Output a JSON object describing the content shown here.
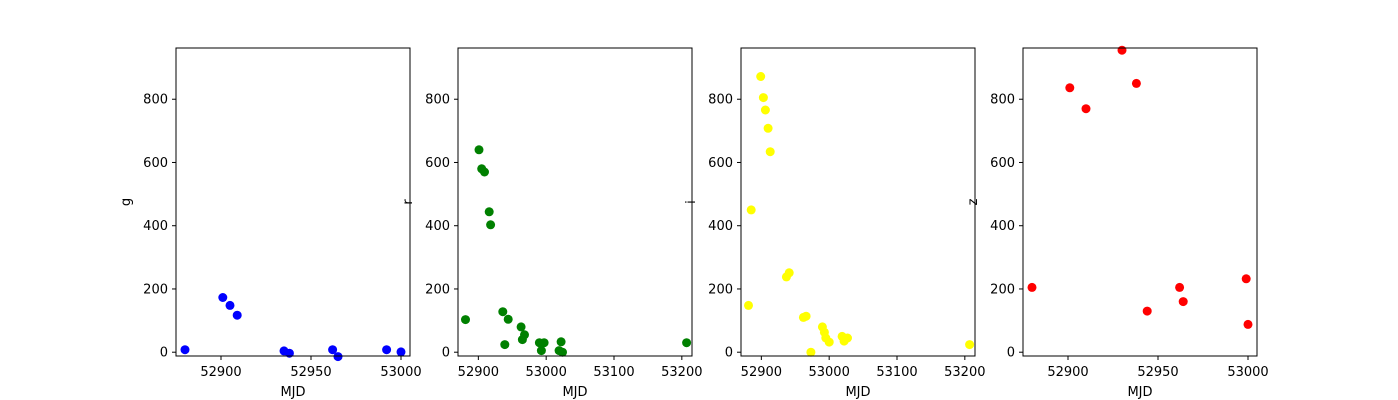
{
  "chart_data": [
    {
      "type": "scatter",
      "xlabel": "MJD",
      "ylabel": "g",
      "color": "#0000ff",
      "xlim": [
        52875,
        53005
      ],
      "ylim": [
        -12,
        962
      ],
      "xticks": [
        52900,
        52950,
        53000
      ],
      "xtick_labels": [
        "52900",
        "52950",
        "53000"
      ],
      "yticks": [
        0,
        200,
        400,
        600,
        800
      ],
      "ytick_labels": [
        "0",
        "200",
        "400",
        "600",
        "800"
      ],
      "points": [
        {
          "x": 52880,
          "y": 8
        },
        {
          "x": 52901,
          "y": 173
        },
        {
          "x": 52905,
          "y": 148
        },
        {
          "x": 52909,
          "y": 117
        },
        {
          "x": 52935,
          "y": 4
        },
        {
          "x": 52938,
          "y": -3
        },
        {
          "x": 52962,
          "y": 8
        },
        {
          "x": 52965,
          "y": -14
        },
        {
          "x": 52992,
          "y": 8
        },
        {
          "x": 53000,
          "y": 1
        }
      ]
    },
    {
      "type": "scatter",
      "xlabel": "MJD",
      "ylabel": "r",
      "color": "#008000",
      "xlim": [
        52870,
        53215
      ],
      "ylim": [
        -12,
        962
      ],
      "xticks": [
        52900,
        53000,
        53100,
        53200
      ],
      "xtick_labels": [
        "52900",
        "53000",
        "53100",
        "53200"
      ],
      "yticks": [
        0,
        200,
        400,
        600,
        800
      ],
      "ytick_labels": [
        "0",
        "200",
        "400",
        "600",
        "800"
      ],
      "points": [
        {
          "x": 52881,
          "y": 103
        },
        {
          "x": 52901,
          "y": 640
        },
        {
          "x": 52905,
          "y": 580
        },
        {
          "x": 52909,
          "y": 570
        },
        {
          "x": 52916,
          "y": 444
        },
        {
          "x": 52918,
          "y": 403
        },
        {
          "x": 52936,
          "y": 128
        },
        {
          "x": 52939,
          "y": 24
        },
        {
          "x": 52944,
          "y": 104
        },
        {
          "x": 52963,
          "y": 80
        },
        {
          "x": 52965,
          "y": 40
        },
        {
          "x": 52968,
          "y": 55
        },
        {
          "x": 52990,
          "y": 30
        },
        {
          "x": 52993,
          "y": 5
        },
        {
          "x": 52997,
          "y": 30
        },
        {
          "x": 53019,
          "y": 5
        },
        {
          "x": 53022,
          "y": 33
        },
        {
          "x": 53024,
          "y": 0
        },
        {
          "x": 53207,
          "y": 30
        }
      ]
    },
    {
      "type": "scatter",
      "xlabel": "MJD",
      "ylabel": "i",
      "color": "#ffff00",
      "xlim": [
        52870,
        53215
      ],
      "ylim": [
        -12,
        962
      ],
      "xticks": [
        52900,
        53000,
        53100,
        53200
      ],
      "xtick_labels": [
        "52900",
        "53000",
        "53100",
        "53200"
      ],
      "yticks": [
        0,
        200,
        400,
        600,
        800
      ],
      "ytick_labels": [
        "0",
        "200",
        "400",
        "600",
        "800"
      ],
      "points": [
        {
          "x": 52881,
          "y": 148
        },
        {
          "x": 52885,
          "y": 450
        },
        {
          "x": 52899,
          "y": 872
        },
        {
          "x": 52903,
          "y": 805
        },
        {
          "x": 52906,
          "y": 766
        },
        {
          "x": 52910,
          "y": 708
        },
        {
          "x": 52913,
          "y": 634
        },
        {
          "x": 52937,
          "y": 238
        },
        {
          "x": 52941,
          "y": 251
        },
        {
          "x": 52962,
          "y": 110
        },
        {
          "x": 52966,
          "y": 114
        },
        {
          "x": 52973,
          "y": 0
        },
        {
          "x": 52990,
          "y": 80
        },
        {
          "x": 52993,
          "y": 63
        },
        {
          "x": 52995,
          "y": 45
        },
        {
          "x": 53000,
          "y": 32
        },
        {
          "x": 53019,
          "y": 50
        },
        {
          "x": 53022,
          "y": 35
        },
        {
          "x": 53027,
          "y": 45
        },
        {
          "x": 53207,
          "y": 24
        }
      ]
    },
    {
      "type": "scatter",
      "xlabel": "MJD",
      "ylabel": "z",
      "color": "#ff0000",
      "xlim": [
        52875,
        53005
      ],
      "ylim": [
        -12,
        962
      ],
      "xticks": [
        52900,
        52950,
        53000
      ],
      "xtick_labels": [
        "52900",
        "52950",
        "53000"
      ],
      "yticks": [
        0,
        200,
        400,
        600,
        800
      ],
      "ytick_labels": [
        "0",
        "200",
        "400",
        "600",
        "800"
      ],
      "points": [
        {
          "x": 52880,
          "y": 205
        },
        {
          "x": 52901,
          "y": 836
        },
        {
          "x": 52910,
          "y": 770
        },
        {
          "x": 52930,
          "y": 955
        },
        {
          "x": 52938,
          "y": 850
        },
        {
          "x": 52944,
          "y": 130
        },
        {
          "x": 52962,
          "y": 205
        },
        {
          "x": 52964,
          "y": 160
        },
        {
          "x": 52999,
          "y": 232
        },
        {
          "x": 53000,
          "y": 88
        }
      ]
    }
  ]
}
